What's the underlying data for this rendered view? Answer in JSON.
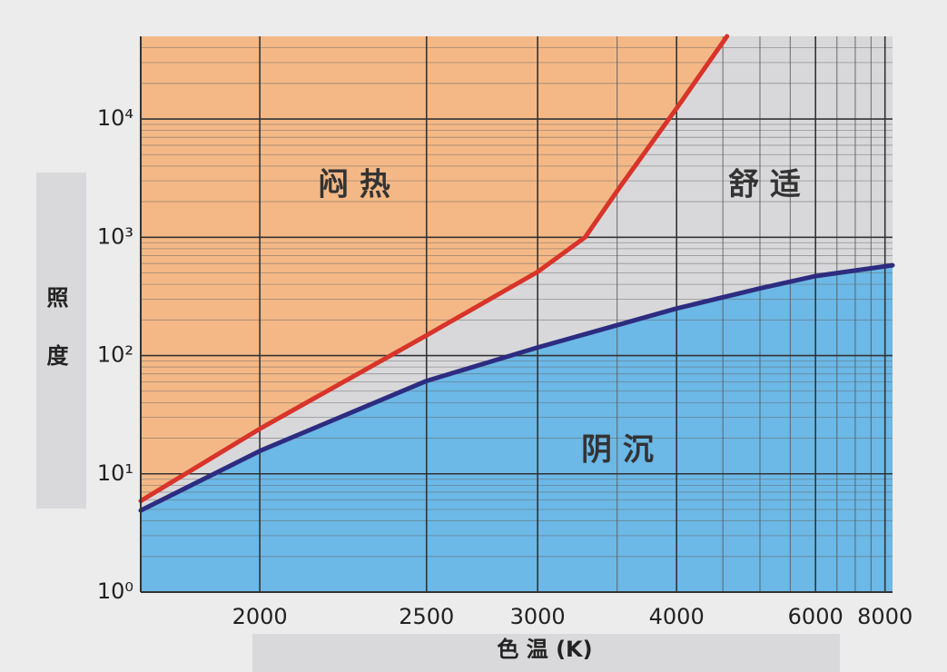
{
  "chart_data": {
    "type": "line",
    "ylabel": "照 度",
    "xlabel": "色 温 (K)",
    "x_scale": "reciprocal",
    "y_scale": "log",
    "xlim": [
      1750,
      8300
    ],
    "ylim": [
      1,
      50000
    ],
    "xticks": [
      2000,
      2500,
      3000,
      4000,
      6000,
      8000
    ],
    "x_minor_gridlines": [
      3500,
      4500,
      5000,
      5500,
      6500,
      7000,
      7500
    ],
    "yticks": [
      {
        "value": 1,
        "label": "10⁰"
      },
      {
        "value": 10,
        "label": "10¹"
      },
      {
        "value": 100,
        "label": "10²"
      },
      {
        "value": 1000,
        "label": "10³"
      },
      {
        "value": 10000,
        "label": "10⁴"
      }
    ],
    "y_minor_gridlines": [
      2,
      3,
      4,
      5,
      6,
      7,
      8,
      9,
      20,
      30,
      40,
      50,
      60,
      70,
      80,
      90,
      200,
      300,
      400,
      500,
      600,
      700,
      800,
      900,
      2000,
      3000,
      4000,
      5000,
      6000,
      7000,
      8000,
      9000,
      20000,
      30000,
      40000
    ],
    "grid": true,
    "series": [
      {
        "color": "#d8342a",
        "fill": "#f4b886",
        "fill_to": "top",
        "x": [
          1750,
          2000,
          2500,
          3000,
          3280,
          3530,
          4000,
          4550
        ],
        "values": [
          5.9,
          24,
          148,
          510,
          1000,
          2750,
          12300,
          50000
        ]
      },
      {
        "color": "#2d2c80",
        "fill": "#6cb8e6",
        "fill_to": "bottom",
        "x": [
          1750,
          2000,
          2500,
          3000,
          4000,
          5000,
          6000,
          8300
        ],
        "values": [
          4.9,
          15.6,
          61,
          117,
          250,
          370,
          470,
          580
        ]
      }
    ],
    "region_labels": [
      "闷 热",
      "舒 适",
      "阴 沉"
    ]
  }
}
